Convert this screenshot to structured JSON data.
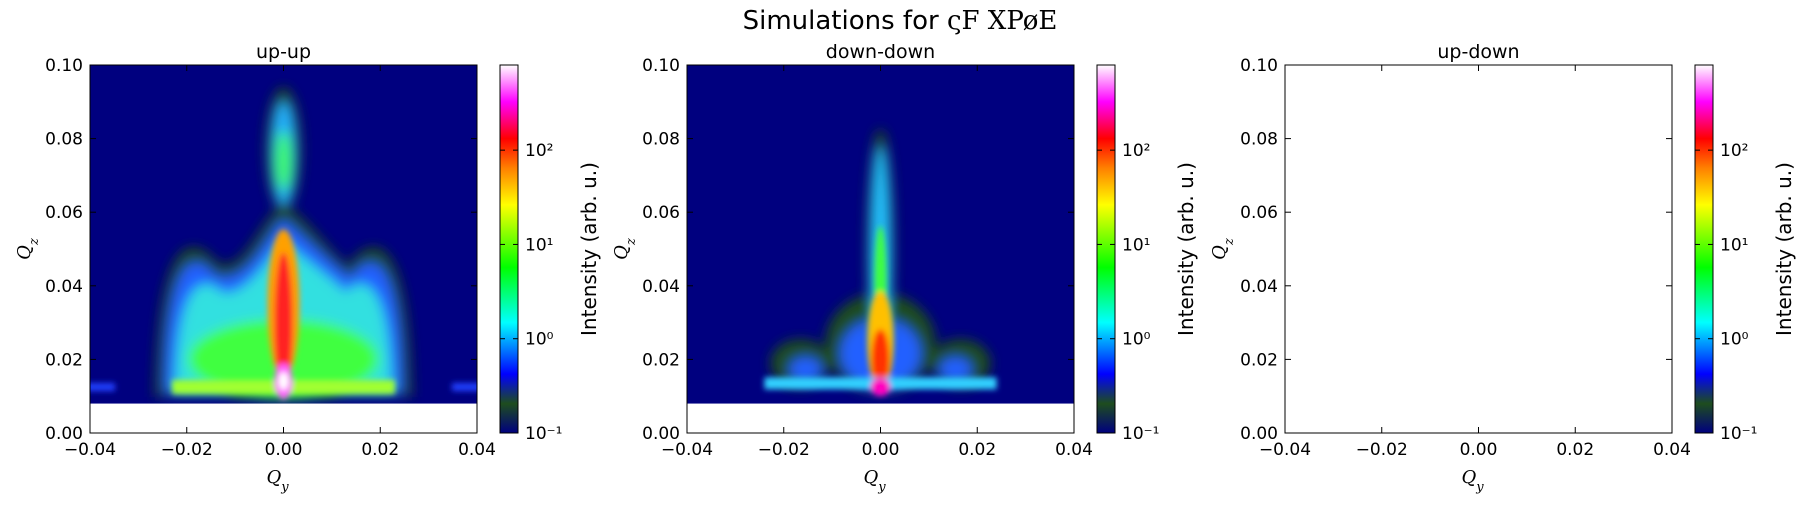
{
  "figure": {
    "title_text": "Simulations for ",
    "title_math": "ςF XPøE"
  },
  "chart_data": [
    {
      "type": "heatmap",
      "title": "up-up",
      "xlabel": "Q_y",
      "ylabel": "Q_z",
      "xlim": [
        -0.04,
        0.04
      ],
      "ylim": [
        0.0,
        0.1
      ],
      "x_ticks": [
        "−0.04",
        "−0.02",
        "0.00",
        "0.02",
        "0.04"
      ],
      "y_ticks": [
        "0.00",
        "0.02",
        "0.04",
        "0.06",
        "0.08",
        "0.10"
      ],
      "colorbar": {
        "label": "Intensity (arb. u.)",
        "scale": "log",
        "ticks": [
          "10⁻¹",
          "10⁰",
          "10¹",
          "10²"
        ],
        "range": [
          0.1,
          800
        ]
      },
      "masked_below_qz": 0.008,
      "features": {
        "specular_rod_qy": 0.0,
        "yoneda_qz": 0.0125,
        "lobe_edges_qy": [
          -0.022,
          0.022
        ],
        "lobe_top_qz": 0.045,
        "upper_lobe_qz": [
          0.059,
          0.094
        ],
        "peak_intensity_qz": 0.013
      },
      "has_data": true
    },
    {
      "type": "heatmap",
      "title": "down-down",
      "xlabel": "Q_y",
      "ylabel": "Q_z",
      "xlim": [
        -0.04,
        0.04
      ],
      "ylim": [
        0.0,
        0.1
      ],
      "x_ticks": [
        "−0.04",
        "−0.02",
        "0.00",
        "0.02",
        "0.04"
      ],
      "y_ticks": [
        "0.00",
        "0.02",
        "0.04",
        "0.06",
        "0.08",
        "0.10"
      ],
      "colorbar": {
        "label": "Intensity (arb. u.)",
        "scale": "log",
        "ticks": [
          "10⁻¹",
          "10⁰",
          "10¹",
          "10²"
        ],
        "range": [
          0.1,
          800
        ]
      },
      "masked_below_qz": 0.008,
      "features": {
        "specular_rod_qy": 0.0,
        "yoneda_qz": 0.0135,
        "yoneda_band_qy": [
          -0.024,
          0.024
        ],
        "rod_top_qz": 0.083,
        "peak_intensity_qz": 0.0125
      },
      "has_data": true
    },
    {
      "type": "heatmap",
      "title": "up-down",
      "xlabel": "Q_y",
      "ylabel": "Q_z",
      "xlim": [
        -0.04,
        0.04
      ],
      "ylim": [
        0.0,
        0.1
      ],
      "x_ticks": [
        "−0.04",
        "−0.02",
        "0.00",
        "0.02",
        "0.04"
      ],
      "y_ticks": [
        "0.00",
        "0.02",
        "0.04",
        "0.06",
        "0.08",
        "0.10"
      ],
      "colorbar": {
        "label": "Intensity (arb. u.)",
        "scale": "log",
        "ticks": [
          "10⁻¹",
          "10⁰",
          "10¹",
          "10²"
        ],
        "range": [
          0.1,
          800
        ]
      },
      "has_data": false
    }
  ],
  "colors": {
    "background_low": "#00007f",
    "colormap": [
      "#00007f",
      "#1e4d1e",
      "#0000ff",
      "#00ffff",
      "#00ff00",
      "#ffff00",
      "#ff8000",
      "#ff0000",
      "#ff00ff",
      "#ffffff"
    ]
  }
}
